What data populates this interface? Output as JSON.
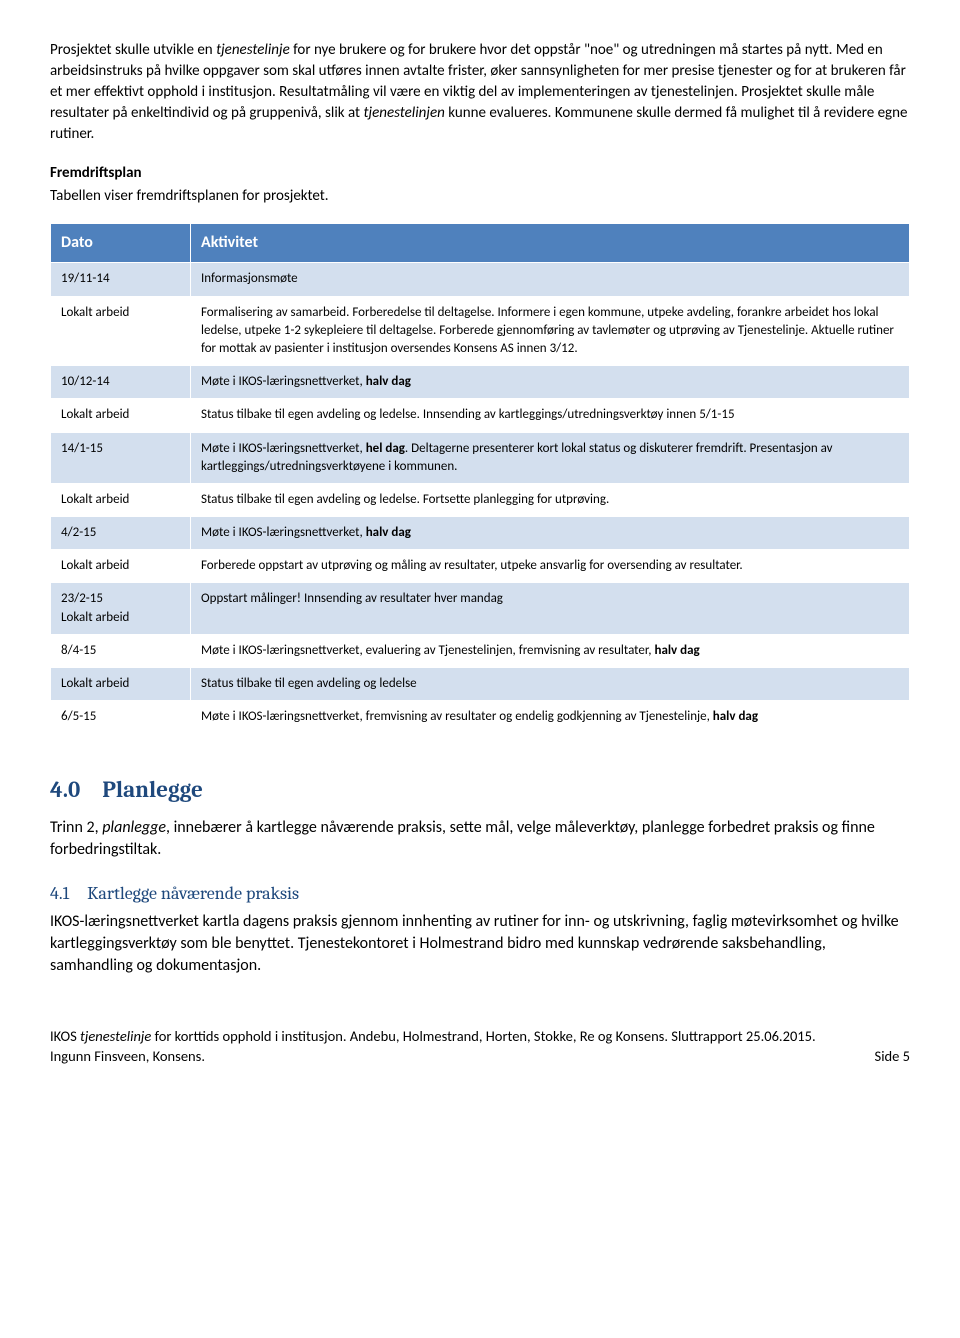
{
  "intro_para": {
    "p1a": "Prosjektet skulle utvikle en ",
    "p1_em1": "tjenestelinje",
    "p1b": " for nye brukere og for brukere hvor det oppstår \"noe\" og utredningen må startes på nytt.",
    "p2": "Med en arbeidsinstruks på hvilke oppgaver som skal utføres innen avtalte frister, øker sannsynligheten for mer presise tjenester og for at brukeren får et mer effektivt opphold i institusjon. Resultatmåling vil være en viktig del av implementeringen av tjenestelinjen. Prosjektet skulle måle resultater på enkeltindivid og på gruppenivå, slik at ",
    "p2_em": "tjenestelinjen",
    "p2b": " kunne evalueres. Kommunene skulle dermed få mulighet til å revidere egne rutiner."
  },
  "fremdrift": {
    "title": "Fremdriftsplan",
    "desc": "Tabellen viser fremdriftsplanen for prosjektet."
  },
  "table": {
    "h1": "Dato",
    "h2": "Aktivitet",
    "rows": [
      {
        "d": "19/11-14",
        "a": "Informasjonsmøte",
        "shade": true
      },
      {
        "d": "Lokalt arbeid",
        "a": "Formalisering av samarbeid. Forberedelse til deltagelse. Informere i egen kommune, utpeke avdeling, forankre arbeidet hos lokal ledelse, utpeke 1-2 sykepleiere til deltagelse. Forberede gjennomføring av tavlemøter og utprøving av Tjenestelinje. Aktuelle rutiner for mottak av pasienter i institusjon oversendes Konsens AS innen 3/12.",
        "shade": false
      },
      {
        "d": "10/12-14",
        "a_pre": "Møte i IKOS-læringsnettverket, ",
        "a_bold": "halv dag",
        "shade": true
      },
      {
        "d": "Lokalt arbeid",
        "a": "Status tilbake til egen avdeling og ledelse. Innsending av kartleggings/utredningsverktøy innen 5/1-15",
        "shade": false
      },
      {
        "d": "14/1-15",
        "a_pre": "Møte i IKOS-læringsnettverket, ",
        "a_bold": "hel dag",
        "a_post": ". Deltagerne presenterer kort lokal status og diskuterer fremdrift. Presentasjon av kartleggings/utredningsverktøyene i kommunen.",
        "shade": true
      },
      {
        "d": "Lokalt arbeid",
        "a": "Status tilbake til egen avdeling og ledelse. Fortsette planlegging for utprøving.",
        "shade": false
      },
      {
        "d": "4/2-15",
        "a_pre": "Møte i IKOS-læringsnettverket, ",
        "a_bold": "halv dag",
        "shade": true
      },
      {
        "d": "Lokalt arbeid",
        "a": "Forberede oppstart av utprøving og måling av resultater, utpeke ansvarlig for oversending av resultater.",
        "shade": false
      },
      {
        "d2a": "23/2-15",
        "d2b": "Lokalt arbeid",
        "a": "Oppstart målinger! Innsending av resultater hver mandag",
        "shade": true
      },
      {
        "d": "8/4-15",
        "a_pre": "Møte i IKOS-læringsnettverket, evaluering av Tjenestelinjen, fremvisning av resultater, ",
        "a_bold": "halv dag",
        "shade": false
      },
      {
        "d": "Lokalt arbeid",
        "a": "Status tilbake til egen avdeling og ledelse",
        "shade": true
      },
      {
        "d": "6/5-15",
        "a_pre": "Møte i IKOS-læringsnettverket, fremvisning av resultater og endelig godkjenning av Tjenestelinje, ",
        "a_bold": "halv dag",
        "shade": false
      }
    ]
  },
  "s40": {
    "num": "4.0",
    "title": "Planlegge",
    "body_a": "Trinn 2, ",
    "body_em": "planlegge",
    "body_b": ", innebærer å kartlegge nåværende praksis, sette mål, velge måleverktøy, planlegge forbedret praksis og finne forbedringstiltak."
  },
  "s41": {
    "num": "4.1",
    "title": "Kartlegge nåværende praksis",
    "body": "IKOS-læringsnettverket kartla dagens praksis gjennom innhenting av rutiner for inn- og utskrivning, faglig møtevirksomhet og hvilke kartleggingsverktøy som ble benyttet. Tjenestekontoret i Holmestrand bidro med kunnskap vedrørende saksbehandling, samhandling og dokumentasjon."
  },
  "footer": {
    "line1a": "IKOS ",
    "line1em": "tjenestelinje",
    "line1b": " for korttids opphold i institusjon. Andebu, Holmestrand, Horten, Stokke, Re og Konsens. Sluttrapport 25.06.2015.",
    "line2": "Ingunn Finsveen, Konsens.",
    "page": "Side 5"
  }
}
